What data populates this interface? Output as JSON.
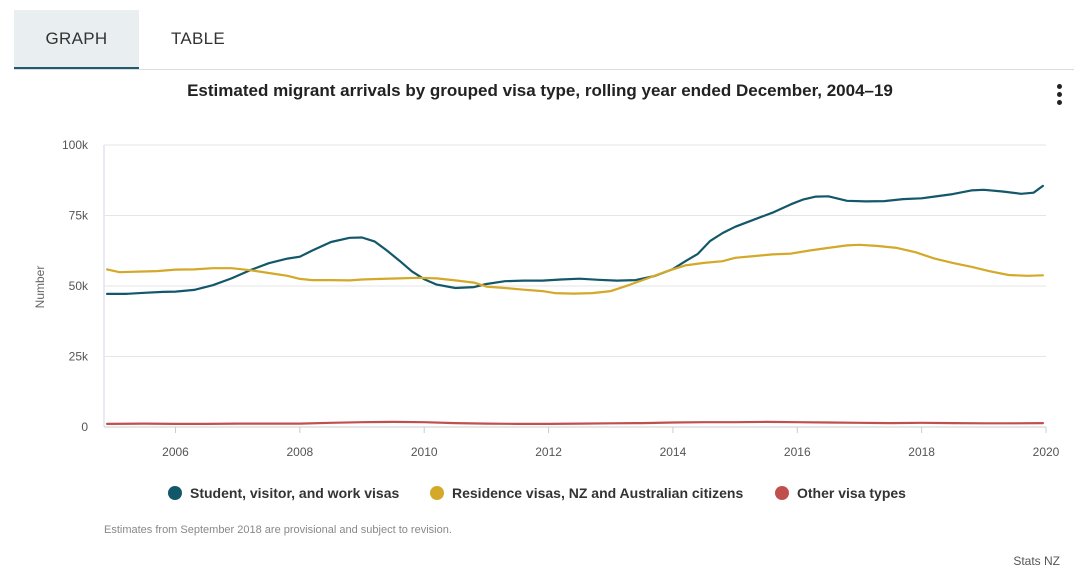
{
  "tabs": [
    {
      "label": "GRAPH",
      "active": true
    },
    {
      "label": "TABLE",
      "active": false
    }
  ],
  "menu_icon": "kebab-menu-icon",
  "footnote": "Estimates from September 2018 are provisional and subject to revision.",
  "source": "Stats NZ",
  "chart_data": {
    "type": "line",
    "title": "Estimated migrant arrivals by grouped visa type, rolling year ended December, 2004–19",
    "xlabel": "",
    "ylabel": "Number",
    "xlim": [
      2004.85,
      2020.0
    ],
    "ylim": [
      0,
      100000
    ],
    "x_ticks": [
      {
        "value": 2006,
        "label": "2006"
      },
      {
        "value": 2008,
        "label": "2008"
      },
      {
        "value": 2010,
        "label": "2010"
      },
      {
        "value": 2012,
        "label": "2012"
      },
      {
        "value": 2014,
        "label": "2014"
      },
      {
        "value": 2016,
        "label": "2016"
      },
      {
        "value": 2018,
        "label": "2018"
      },
      {
        "value": 2020,
        "label": "2020"
      }
    ],
    "y_ticks": [
      {
        "value": 0,
        "label": "0"
      },
      {
        "value": 25000,
        "label": "25k"
      },
      {
        "value": 50000,
        "label": "50k"
      },
      {
        "value": 75000,
        "label": "75k"
      },
      {
        "value": 100000,
        "label": "100k"
      }
    ],
    "grid": true,
    "legend_position": "bottom",
    "series": [
      {
        "name": "Student, visitor, and work visas",
        "color": "#13576a",
        "points": [
          [
            2004.9,
            47200
          ],
          [
            2005.2,
            47200
          ],
          [
            2005.5,
            47600
          ],
          [
            2005.8,
            47900
          ],
          [
            2006.0,
            48000
          ],
          [
            2006.3,
            48600
          ],
          [
            2006.6,
            50300
          ],
          [
            2006.9,
            52700
          ],
          [
            2007.2,
            55600
          ],
          [
            2007.5,
            58100
          ],
          [
            2007.8,
            59700
          ],
          [
            2008.0,
            60400
          ],
          [
            2008.2,
            62600
          ],
          [
            2008.5,
            65600
          ],
          [
            2008.8,
            67100
          ],
          [
            2009.0,
            67200
          ],
          [
            2009.2,
            65800
          ],
          [
            2009.4,
            62600
          ],
          [
            2009.6,
            59000
          ],
          [
            2009.8,
            55200
          ],
          [
            2010.0,
            52400
          ],
          [
            2010.2,
            50500
          ],
          [
            2010.5,
            49300
          ],
          [
            2010.8,
            49600
          ],
          [
            2011.0,
            50700
          ],
          [
            2011.3,
            51700
          ],
          [
            2011.6,
            51900
          ],
          [
            2011.9,
            51900
          ],
          [
            2012.2,
            52300
          ],
          [
            2012.5,
            52600
          ],
          [
            2012.8,
            52200
          ],
          [
            2013.1,
            51900
          ],
          [
            2013.4,
            52100
          ],
          [
            2013.7,
            53500
          ],
          [
            2014.0,
            56000
          ],
          [
            2014.2,
            58800
          ],
          [
            2014.4,
            61400
          ],
          [
            2014.6,
            66000
          ],
          [
            2014.8,
            68800
          ],
          [
            2015.0,
            71000
          ],
          [
            2015.3,
            73500
          ],
          [
            2015.6,
            76000
          ],
          [
            2015.9,
            79000
          ],
          [
            2016.1,
            80700
          ],
          [
            2016.3,
            81700
          ],
          [
            2016.5,
            81800
          ],
          [
            2016.8,
            80200
          ],
          [
            2017.1,
            80000
          ],
          [
            2017.4,
            80100
          ],
          [
            2017.7,
            80800
          ],
          [
            2018.0,
            81100
          ],
          [
            2018.2,
            81700
          ],
          [
            2018.5,
            82600
          ],
          [
            2018.8,
            83900
          ],
          [
            2019.0,
            84100
          ],
          [
            2019.3,
            83500
          ],
          [
            2019.6,
            82700
          ],
          [
            2019.8,
            83100
          ],
          [
            2019.95,
            85500
          ]
        ]
      },
      {
        "name": "Residence visas, NZ and Australian citizens",
        "color": "#d4a828",
        "points": [
          [
            2004.9,
            55900
          ],
          [
            2005.1,
            54900
          ],
          [
            2005.4,
            55100
          ],
          [
            2005.7,
            55300
          ],
          [
            2006.0,
            55800
          ],
          [
            2006.3,
            55900
          ],
          [
            2006.6,
            56300
          ],
          [
            2006.9,
            56300
          ],
          [
            2007.2,
            55600
          ],
          [
            2007.5,
            54600
          ],
          [
            2007.8,
            53600
          ],
          [
            2008.0,
            52500
          ],
          [
            2008.2,
            52100
          ],
          [
            2008.5,
            52100
          ],
          [
            2008.8,
            52000
          ],
          [
            2009.0,
            52300
          ],
          [
            2009.3,
            52500
          ],
          [
            2009.6,
            52700
          ],
          [
            2009.9,
            52900
          ],
          [
            2010.2,
            52700
          ],
          [
            2010.5,
            52000
          ],
          [
            2010.8,
            51200
          ],
          [
            2011.0,
            49800
          ],
          [
            2011.3,
            49300
          ],
          [
            2011.6,
            48700
          ],
          [
            2011.9,
            48200
          ],
          [
            2012.1,
            47500
          ],
          [
            2012.4,
            47300
          ],
          [
            2012.7,
            47500
          ],
          [
            2013.0,
            48200
          ],
          [
            2013.3,
            50400
          ],
          [
            2013.6,
            52800
          ],
          [
            2013.9,
            55200
          ],
          [
            2014.2,
            57300
          ],
          [
            2014.5,
            58200
          ],
          [
            2014.8,
            58800
          ],
          [
            2015.0,
            60000
          ],
          [
            2015.3,
            60600
          ],
          [
            2015.6,
            61200
          ],
          [
            2015.9,
            61500
          ],
          [
            2016.2,
            62600
          ],
          [
            2016.5,
            63500
          ],
          [
            2016.8,
            64400
          ],
          [
            2017.0,
            64600
          ],
          [
            2017.3,
            64200
          ],
          [
            2017.6,
            63500
          ],
          [
            2017.9,
            62000
          ],
          [
            2018.2,
            59800
          ],
          [
            2018.5,
            58200
          ],
          [
            2018.8,
            56800
          ],
          [
            2019.1,
            55200
          ],
          [
            2019.4,
            53900
          ],
          [
            2019.7,
            53600
          ],
          [
            2019.95,
            53800
          ]
        ]
      },
      {
        "name": "Other visa types",
        "color": "#c0504d",
        "points": [
          [
            2004.9,
            1100
          ],
          [
            2005.5,
            1200
          ],
          [
            2006.0,
            1100
          ],
          [
            2006.5,
            1100
          ],
          [
            2007.0,
            1200
          ],
          [
            2007.5,
            1200
          ],
          [
            2008.0,
            1200
          ],
          [
            2008.5,
            1500
          ],
          [
            2009.0,
            1700
          ],
          [
            2009.5,
            1800
          ],
          [
            2010.0,
            1700
          ],
          [
            2010.5,
            1400
          ],
          [
            2011.0,
            1200
          ],
          [
            2011.5,
            1100
          ],
          [
            2012.0,
            1100
          ],
          [
            2012.5,
            1200
          ],
          [
            2013.0,
            1300
          ],
          [
            2013.5,
            1400
          ],
          [
            2014.0,
            1600
          ],
          [
            2014.5,
            1700
          ],
          [
            2015.0,
            1700
          ],
          [
            2015.5,
            1800
          ],
          [
            2016.0,
            1700
          ],
          [
            2016.5,
            1600
          ],
          [
            2017.0,
            1500
          ],
          [
            2017.5,
            1400
          ],
          [
            2018.0,
            1500
          ],
          [
            2018.5,
            1400
          ],
          [
            2019.0,
            1300
          ],
          [
            2019.5,
            1300
          ],
          [
            2019.95,
            1400
          ]
        ]
      }
    ]
  }
}
